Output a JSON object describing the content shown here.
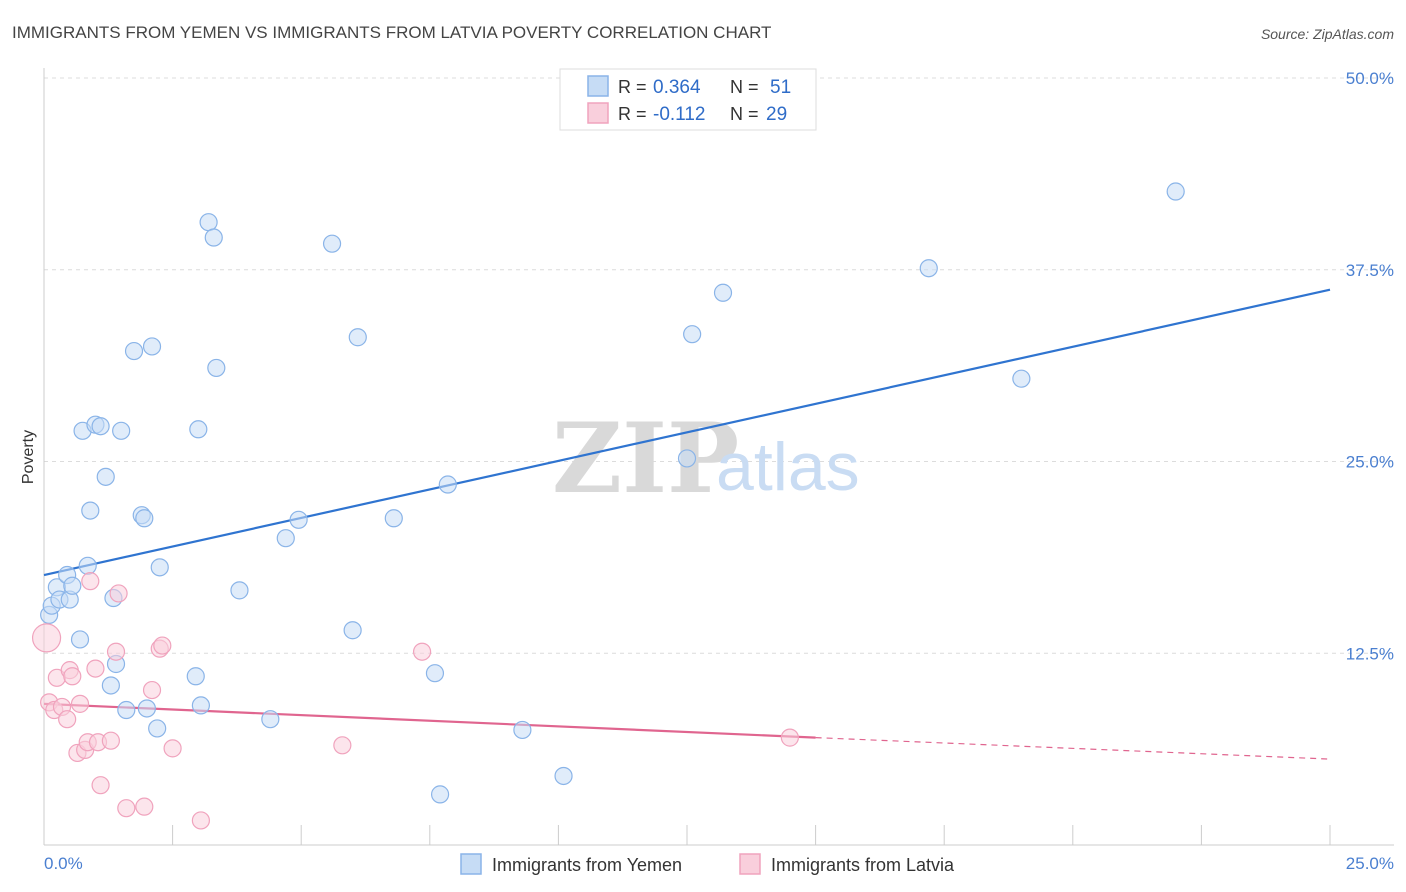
{
  "chart_data": {
    "type": "scatter",
    "title": "IMMIGRANTS FROM YEMEN VS IMMIGRANTS FROM LATVIA POVERTY CORRELATION CHART",
    "source": "Source: ZipAtlas.com",
    "ylabel": "Poverty",
    "xlabel": "",
    "xlim": [
      0,
      25
    ],
    "ylim": [
      0,
      50
    ],
    "x_tick_labels": {
      "left": "0.0%",
      "right": "25.0%"
    },
    "y_ticks": [
      {
        "value": 12.5,
        "label": "12.5%"
      },
      {
        "value": 25.0,
        "label": "25.0%"
      },
      {
        "value": 37.5,
        "label": "37.5%"
      },
      {
        "value": 50.0,
        "label": "50.0%"
      }
    ],
    "watermark": {
      "zip": "ZIP",
      "atlas": "atlas"
    },
    "legend": {
      "entries": [
        {
          "r_label": "R = ",
          "r_value": "0.364",
          "n_label": "N = ",
          "n_value": "51"
        },
        {
          "r_label": "R = ",
          "r_value": "-0.112",
          "n_label": "N = ",
          "n_value": "29"
        }
      ]
    },
    "series": [
      {
        "name": "Immigrants from Yemen",
        "color": "#8ab4e8",
        "fill": "#c6dcf5",
        "line_color": "#2f74d0",
        "trend": {
          "x0": 0,
          "y0": 17.6,
          "x1": 25,
          "y1": 36.2
        },
        "points": [
          [
            0.1,
            15.0
          ],
          [
            0.15,
            15.6
          ],
          [
            0.25,
            16.8
          ],
          [
            0.3,
            16.0
          ],
          [
            0.45,
            17.6
          ],
          [
            0.5,
            16.0
          ],
          [
            0.55,
            16.9
          ],
          [
            0.7,
            13.4
          ],
          [
            0.75,
            27.0
          ],
          [
            0.85,
            18.2
          ],
          [
            0.9,
            21.8
          ],
          [
            1.0,
            27.4
          ],
          [
            1.1,
            27.3
          ],
          [
            1.2,
            24.0
          ],
          [
            1.3,
            10.4
          ],
          [
            1.35,
            16.1
          ],
          [
            1.4,
            11.8
          ],
          [
            1.5,
            27.0
          ],
          [
            1.6,
            8.8
          ],
          [
            1.75,
            32.2
          ],
          [
            1.9,
            21.5
          ],
          [
            1.95,
            21.3
          ],
          [
            2.0,
            8.9
          ],
          [
            2.1,
            32.5
          ],
          [
            2.2,
            7.6
          ],
          [
            2.25,
            18.1
          ],
          [
            2.95,
            11.0
          ],
          [
            3.0,
            27.1
          ],
          [
            3.05,
            9.1
          ],
          [
            3.2,
            40.6
          ],
          [
            3.3,
            39.6
          ],
          [
            3.35,
            31.1
          ],
          [
            3.8,
            16.6
          ],
          [
            4.4,
            8.2
          ],
          [
            4.7,
            20.0
          ],
          [
            4.95,
            21.2
          ],
          [
            5.6,
            39.2
          ],
          [
            6.0,
            14.0
          ],
          [
            6.1,
            33.1
          ],
          [
            6.8,
            21.3
          ],
          [
            7.6,
            11.2
          ],
          [
            7.7,
            3.3
          ],
          [
            7.85,
            23.5
          ],
          [
            9.3,
            7.5
          ],
          [
            10.1,
            4.5
          ],
          [
            12.5,
            25.2
          ],
          [
            12.6,
            33.3
          ],
          [
            13.2,
            36.0
          ],
          [
            17.2,
            37.6
          ],
          [
            19.0,
            30.4
          ],
          [
            22.0,
            42.6
          ]
        ]
      },
      {
        "name": "Immigrants from Latvia",
        "color": "#f0a3bd",
        "fill": "#f9cfdc",
        "line_color": "#e0658f",
        "trend": {
          "x0": 0,
          "y0": 9.2,
          "x1": 15,
          "y1": 7.0
        },
        "trend_ext": {
          "x0": 15,
          "y0": 7.0,
          "x1": 25,
          "y1": 5.6
        },
        "points": [
          [
            0.05,
            13.5
          ],
          [
            0.1,
            9.3
          ],
          [
            0.2,
            8.8
          ],
          [
            0.25,
            10.9
          ],
          [
            0.35,
            9.0
          ],
          [
            0.45,
            8.2
          ],
          [
            0.5,
            11.4
          ],
          [
            0.55,
            11.0
          ],
          [
            0.65,
            6.0
          ],
          [
            0.7,
            9.2
          ],
          [
            0.8,
            6.2
          ],
          [
            0.85,
            6.7
          ],
          [
            0.9,
            17.2
          ],
          [
            1.0,
            11.5
          ],
          [
            1.05,
            6.7
          ],
          [
            1.1,
            3.9
          ],
          [
            1.3,
            6.8
          ],
          [
            1.4,
            12.6
          ],
          [
            1.45,
            16.4
          ],
          [
            1.6,
            2.4
          ],
          [
            1.95,
            2.5
          ],
          [
            2.1,
            10.1
          ],
          [
            2.25,
            12.8
          ],
          [
            2.3,
            13.0
          ],
          [
            2.5,
            6.3
          ],
          [
            3.05,
            1.6
          ],
          [
            5.8,
            6.5
          ],
          [
            7.35,
            12.6
          ],
          [
            14.5,
            7.0
          ]
        ]
      }
    ]
  }
}
